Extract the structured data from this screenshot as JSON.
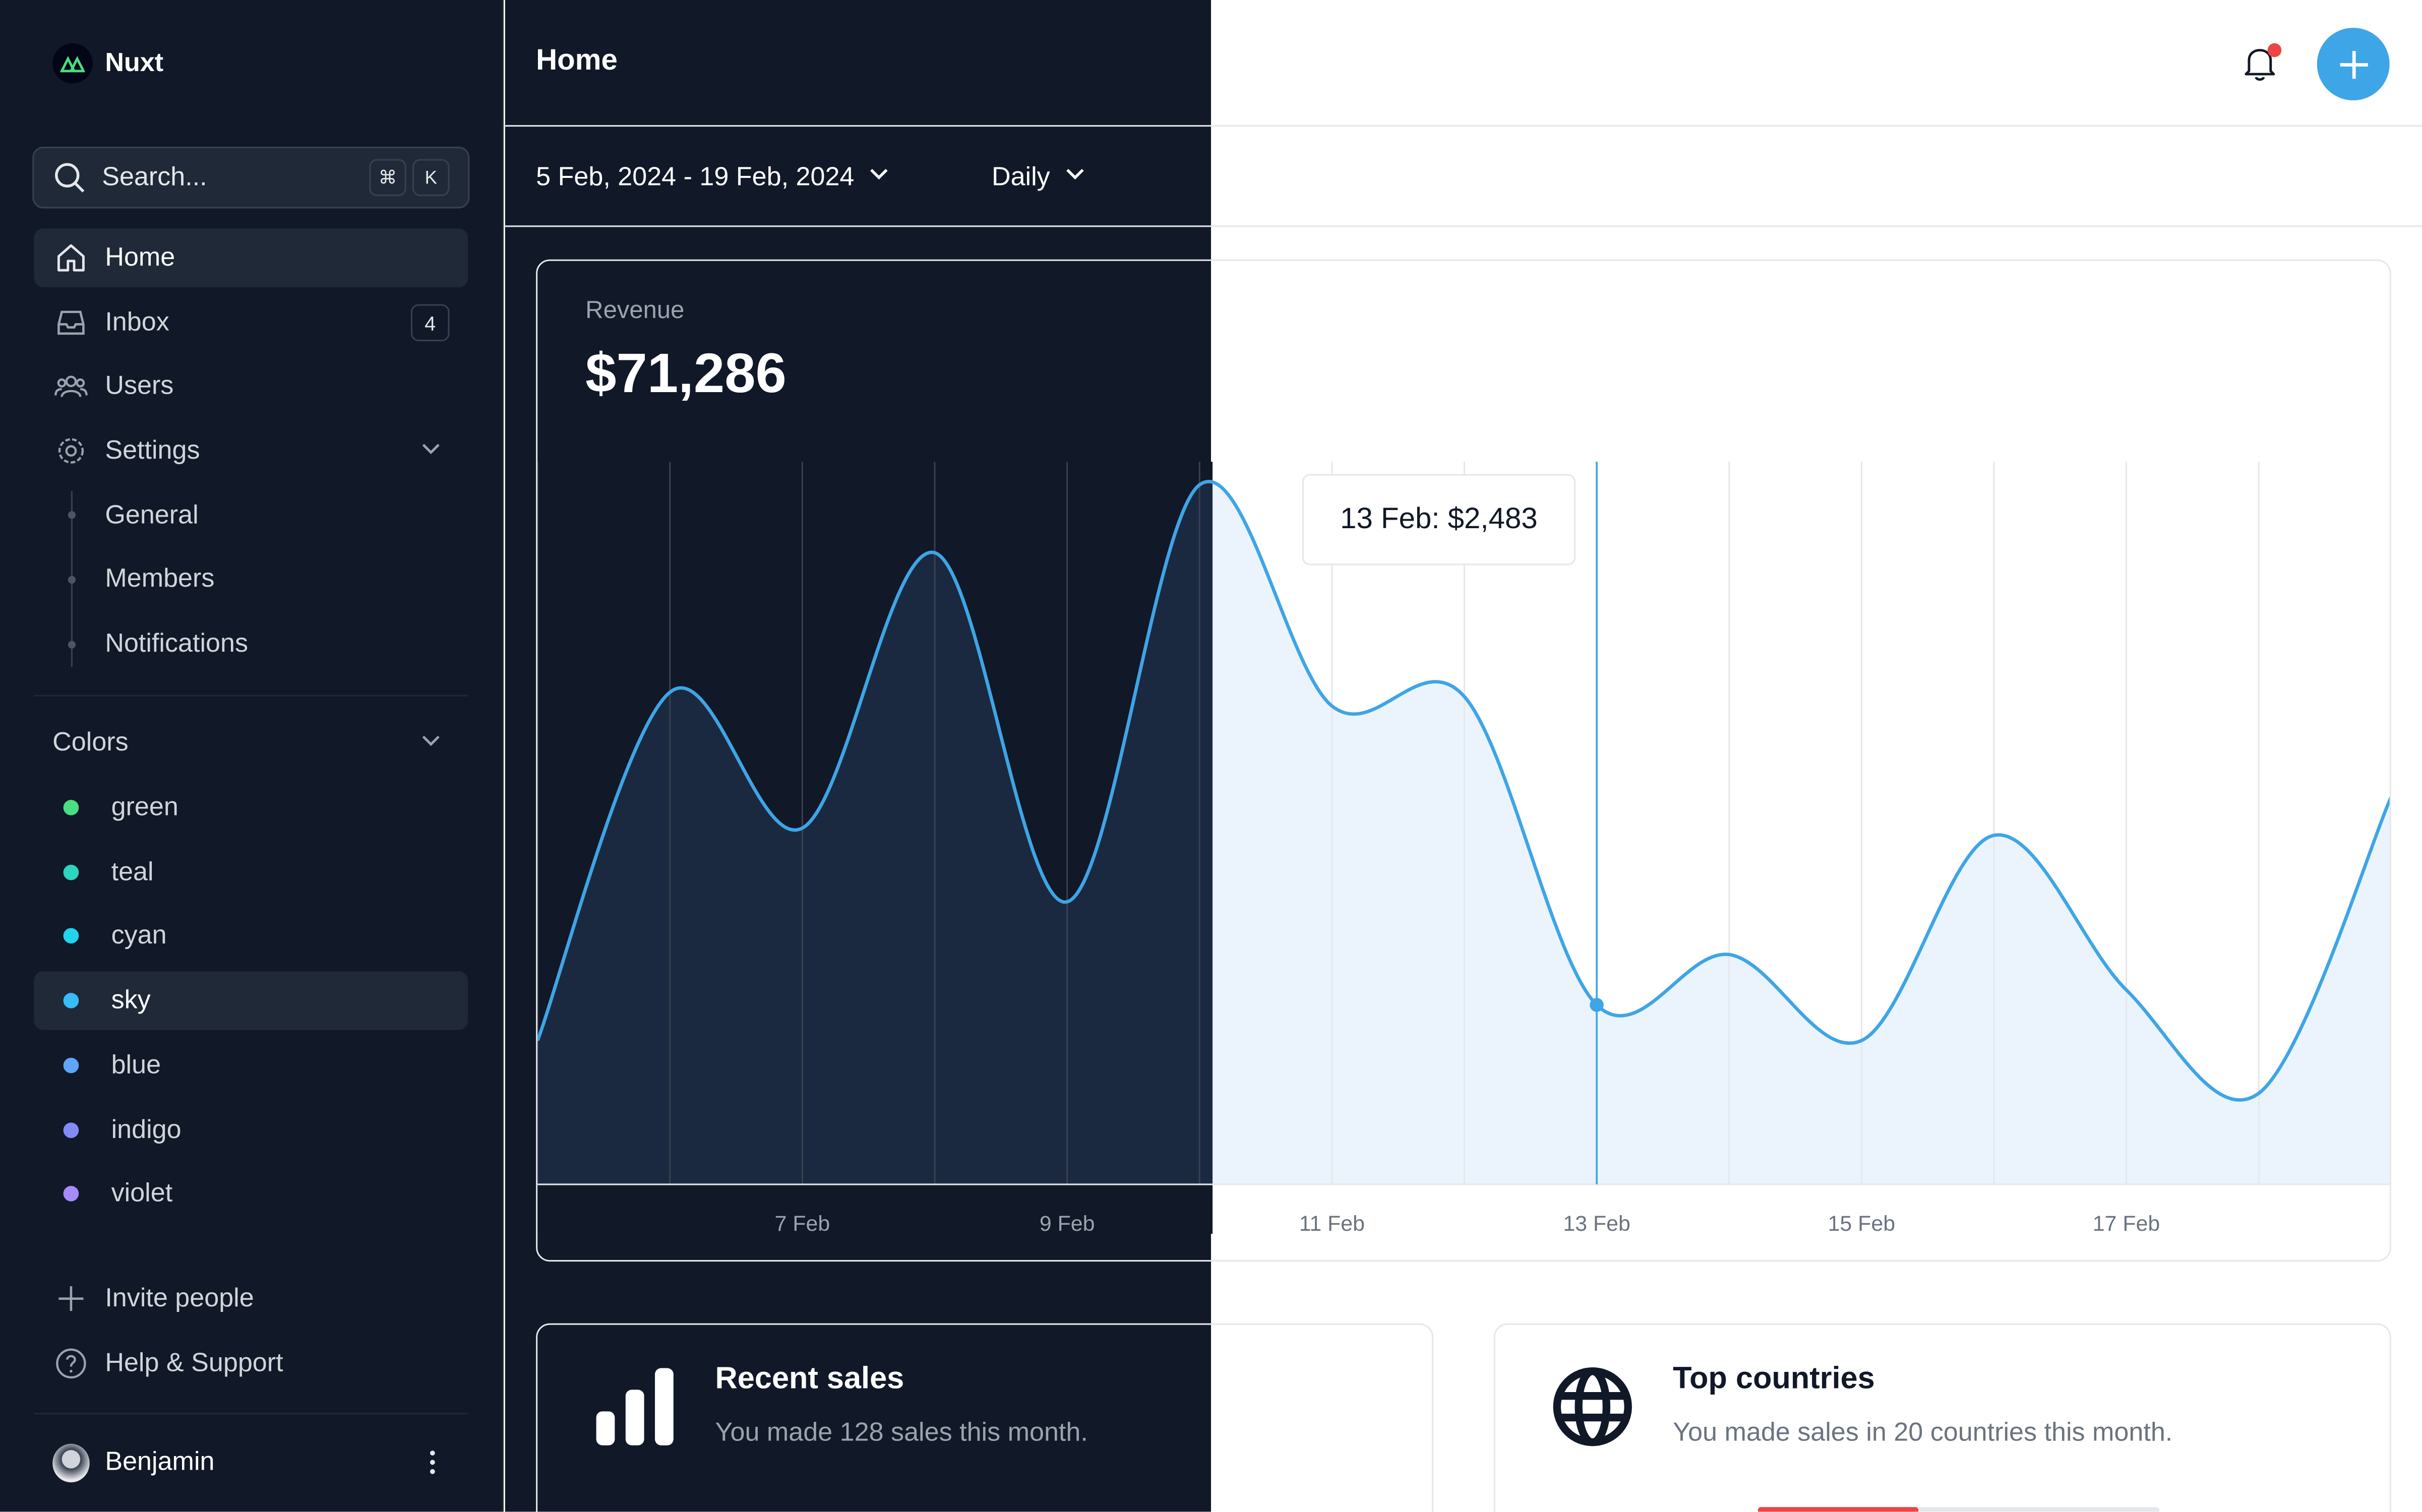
{
  "app": {
    "name": "Nuxt"
  },
  "sidebar": {
    "search": {
      "placeholder": "Search...",
      "shortcut": [
        "⌘",
        "K"
      ]
    },
    "nav": [
      {
        "label": "Home",
        "icon": "home-icon",
        "active": true
      },
      {
        "label": "Inbox",
        "icon": "inbox-icon",
        "badge": "4"
      },
      {
        "label": "Users",
        "icon": "users-icon"
      },
      {
        "label": "Settings",
        "icon": "gear-icon",
        "expanded": true,
        "children": [
          {
            "label": "General"
          },
          {
            "label": "Members"
          },
          {
            "label": "Notifications"
          }
        ]
      }
    ],
    "colors": {
      "label": "Colors",
      "items": [
        {
          "label": "green",
          "color": "#4ade80"
        },
        {
          "label": "teal",
          "color": "#2dd4bf"
        },
        {
          "label": "cyan",
          "color": "#22d3ee"
        },
        {
          "label": "sky",
          "color": "#38bdf8",
          "active": true
        },
        {
          "label": "blue",
          "color": "#60a5fa"
        },
        {
          "label": "indigo",
          "color": "#818cf8"
        },
        {
          "label": "violet",
          "color": "#a78bfa"
        }
      ]
    },
    "footer": [
      {
        "label": "Invite people",
        "icon": "plus-icon"
      },
      {
        "label": "Help & Support",
        "icon": "help-icon"
      }
    ],
    "user": {
      "name": "Benjamin"
    }
  },
  "header": {
    "title": "Home",
    "notifications": true
  },
  "toolbar": {
    "date_range": "5 Feb, 2024 - 19 Feb, 2024",
    "period": "Daily"
  },
  "revenue": {
    "label": "Revenue",
    "value": "$71,286",
    "tooltip": "13 Feb: $2,483",
    "accent": "#3ea5e6"
  },
  "chart_data": {
    "type": "area",
    "x": [
      "5 Feb",
      "6 Feb",
      "7 Feb",
      "8 Feb",
      "9 Feb",
      "10 Feb",
      "11 Feb",
      "12 Feb",
      "13 Feb",
      "14 Feb",
      "15 Feb",
      "16 Feb",
      "17 Feb",
      "18 Feb",
      "19 Feb"
    ],
    "values": [
      1990,
      6810,
      4930,
      8740,
      3910,
      9680,
      6620,
      6750,
      2483,
      3180,
      1990,
      4830,
      2690,
      1260,
      5360
    ],
    "xticks": [
      "7 Feb",
      "9 Feb",
      "11 Feb",
      "13 Feb",
      "15 Feb",
      "17 Feb"
    ],
    "ylim": [
      0,
      10000
    ],
    "grid": "vertical",
    "highlight": "13 Feb"
  },
  "cards": [
    {
      "title": "Recent sales",
      "subtitle": "You made 128 sales this month.",
      "icon": "bar-chart-icon"
    },
    {
      "title": "Top countries",
      "subtitle": "You made sales in 20 countries this month.",
      "icon": "globe-icon",
      "first_row_progress": 0.4
    }
  ]
}
